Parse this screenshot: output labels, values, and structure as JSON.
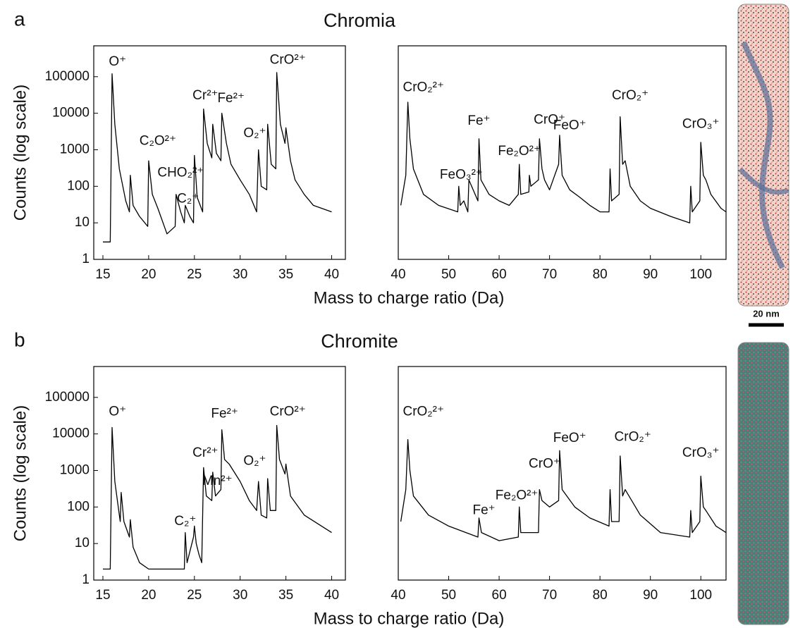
{
  "figure": {
    "panels": [
      {
        "label": "a",
        "title": "Chromia",
        "xlabel": "Mass to charge ratio (Da)",
        "ylabel": "Counts (log scale)"
      },
      {
        "label": "b",
        "title": "Chromite",
        "xlabel": "Mass to charge ratio (Da)",
        "ylabel": "Counts (log scale)"
      }
    ],
    "scale_bar": "20 nm"
  },
  "chart_data": [
    {
      "type": "line",
      "log_y": true,
      "color": "#000000",
      "xlim": [
        14,
        41.5
      ],
      "ylim": [
        1,
        700000
      ],
      "xticks": [
        15,
        20,
        25,
        30,
        35,
        40
      ],
      "yticks": [
        1,
        10,
        100,
        1000,
        10000,
        100000
      ],
      "x": [
        15,
        15.8,
        16,
        16.3,
        16.8,
        17.5,
        17.9,
        18,
        18.3,
        19,
        19.9,
        20,
        20.4,
        21,
        22,
        22.9,
        23,
        23.5,
        23.9,
        24,
        24.5,
        24.9,
        25,
        25.3,
        25.9,
        26,
        26.4,
        26.9,
        27,
        27.4,
        27.9,
        28,
        28.5,
        29,
        30,
        31,
        31.8,
        32,
        32.3,
        32.9,
        33,
        33.4,
        33.9,
        34,
        34.4,
        34.9,
        35,
        35.5,
        36,
        37,
        38,
        40
      ],
      "values": [
        3,
        3,
        120000,
        5000,
        300,
        40,
        20,
        200,
        30,
        15,
        8,
        500,
        60,
        25,
        5,
        8,
        60,
        20,
        10,
        30,
        15,
        10,
        700,
        50,
        20,
        13000,
        1500,
        600,
        5000,
        800,
        500,
        10000,
        1500,
        400,
        150,
        60,
        20,
        1000,
        100,
        80,
        5000,
        400,
        300,
        130000,
        5000,
        1500,
        4000,
        500,
        150,
        60,
        30,
        20
      ],
      "annotations": [
        {
          "text": "O⁺",
          "x": 16.6,
          "y": 250000
        },
        {
          "text": "C₂O²⁺",
          "x": 21,
          "y": 1700
        },
        {
          "text": "CHO₂²⁺",
          "x": 23.5,
          "y": 230
        },
        {
          "text": "C₂⁺",
          "x": 24.3,
          "y": 45
        },
        {
          "text": "Cr²⁺",
          "x": 26.2,
          "y": 30000
        },
        {
          "text": "Fe²⁺",
          "x": 29,
          "y": 25000
        },
        {
          "text": "O₂⁺",
          "x": 31.6,
          "y": 2800
        },
        {
          "text": "CrO²⁺",
          "x": 35.2,
          "y": 280000
        }
      ]
    },
    {
      "type": "line",
      "log_y": true,
      "color": "#000000",
      "xlim": [
        40,
        105
      ],
      "ylim": [
        1,
        700000
      ],
      "xticks": [
        40,
        50,
        60,
        70,
        80,
        90,
        100
      ],
      "x": [
        40.5,
        41.5,
        41.9,
        42.3,
        43,
        45,
        48,
        51.8,
        52,
        52.3,
        53,
        53.8,
        54,
        55.8,
        56,
        56.4,
        58,
        60,
        62,
        63.8,
        64,
        64.3,
        65.9,
        66,
        66.3,
        67.8,
        68,
        68.5,
        69,
        70,
        71.8,
        72,
        72.5,
        74,
        76,
        78,
        80,
        81.8,
        82,
        82.3,
        83.8,
        84,
        84.5,
        85,
        86,
        88,
        90,
        94,
        97.8,
        98,
        98.3,
        99.8,
        100,
        100.5,
        101,
        102,
        104,
        105
      ],
      "values": [
        30,
        200,
        20000,
        2000,
        300,
        60,
        30,
        20,
        100,
        30,
        40,
        20,
        150,
        40,
        2000,
        150,
        60,
        40,
        30,
        60,
        400,
        60,
        70,
        200,
        100,
        150,
        2000,
        300,
        150,
        80,
        400,
        2500,
        200,
        80,
        50,
        30,
        20,
        20,
        300,
        40,
        60,
        8000,
        400,
        500,
        100,
        40,
        25,
        15,
        10,
        100,
        20,
        40,
        1600,
        200,
        150,
        60,
        25,
        20
      ],
      "annotations": [
        {
          "text": "CrO₂²⁺",
          "x": 45,
          "y": 50000
        },
        {
          "text": "FeO₃²⁺",
          "x": 52.5,
          "y": 200
        },
        {
          "text": "Fe⁺",
          "x": 56,
          "y": 6000
        },
        {
          "text": "Fe₂O²⁺",
          "x": 64,
          "y": 900
        },
        {
          "text": "CrO⁺",
          "x": 70,
          "y": 6500
        },
        {
          "text": "FeO⁺",
          "x": 74,
          "y": 4500
        },
        {
          "text": "CrO₂⁺",
          "x": 86,
          "y": 30000
        },
        {
          "text": "CrO₃⁺",
          "x": 100,
          "y": 5000
        }
      ]
    },
    {
      "type": "line",
      "log_y": true,
      "color": "#000000",
      "xlim": [
        14,
        41.5
      ],
      "ylim": [
        1,
        700000
      ],
      "xticks": [
        15,
        20,
        25,
        30,
        35,
        40
      ],
      "yticks": [
        1,
        10,
        100,
        1000,
        10000,
        100000
      ],
      "x": [
        15,
        15.8,
        16,
        16.3,
        16.8,
        16.9,
        17,
        17.3,
        17.9,
        18,
        18.3,
        19,
        20,
        22,
        23.9,
        24,
        24.2,
        24.9,
        25,
        25.2,
        25.5,
        25.8,
        26,
        26.3,
        26.9,
        27,
        27.3,
        27.9,
        28,
        28.3,
        28.8,
        30,
        31,
        31.8,
        32,
        32.3,
        32.9,
        33,
        33.3,
        33.9,
        34,
        34.3,
        34.9,
        35,
        35.5,
        37,
        40
      ],
      "values": [
        2,
        2,
        15000,
        500,
        60,
        40,
        250,
        40,
        15,
        45,
        8,
        3,
        2,
        2,
        2,
        20,
        3,
        15,
        30,
        10,
        5,
        3,
        1200,
        200,
        150,
        900,
        200,
        300,
        13000,
        2000,
        1500,
        500,
        150,
        80,
        500,
        60,
        50,
        600,
        80,
        80,
        17000,
        2000,
        800,
        1500,
        200,
        60,
        20
      ],
      "annotations": [
        {
          "text": "O⁺",
          "x": 16.6,
          "y": 40000
        },
        {
          "text": "C₂⁺",
          "x": 24,
          "y": 40
        },
        {
          "text": "Cr²⁺",
          "x": 26.2,
          "y": 3000
        },
        {
          "text": "Mn²⁺",
          "x": 27.5,
          "y": 500
        },
        {
          "text": "Fe²⁺",
          "x": 28.3,
          "y": 35000
        },
        {
          "text": "O₂⁺",
          "x": 31.6,
          "y": 1800
        },
        {
          "text": "CrO²⁺",
          "x": 35.2,
          "y": 40000
        }
      ]
    },
    {
      "type": "line",
      "log_y": true,
      "color": "#000000",
      "xlim": [
        40,
        105
      ],
      "ylim": [
        1,
        700000
      ],
      "xticks": [
        40,
        50,
        60,
        70,
        80,
        90,
        100
      ],
      "x": [
        40.5,
        41.5,
        41.9,
        42.3,
        43,
        46,
        50,
        55.8,
        56,
        56.5,
        60,
        63.8,
        64,
        64.3,
        66,
        67.8,
        68,
        68.5,
        70,
        71.8,
        72,
        72.5,
        75,
        78,
        81.8,
        82,
        82.3,
        83.8,
        84,
        84.5,
        85,
        88,
        92,
        97.8,
        98,
        98.3,
        99.8,
        100,
        100.5,
        101,
        103,
        105
      ],
      "values": [
        40,
        300,
        7000,
        1000,
        200,
        60,
        30,
        15,
        50,
        20,
        12,
        15,
        100,
        20,
        20,
        20,
        300,
        150,
        100,
        150,
        3500,
        300,
        100,
        50,
        30,
        300,
        40,
        40,
        2500,
        200,
        300,
        60,
        20,
        15,
        80,
        20,
        40,
        700,
        100,
        80,
        30,
        20
      ],
      "annotations": [
        {
          "text": "CrO₂²⁺",
          "x": 45,
          "y": 40000
        },
        {
          "text": "Fe⁺",
          "x": 57,
          "y": 80
        },
        {
          "text": "Fe₂O²⁺",
          "x": 63.5,
          "y": 200
        },
        {
          "text": "CrO⁺",
          "x": 69,
          "y": 1500
        },
        {
          "text": "FeO⁺",
          "x": 74,
          "y": 7500
        },
        {
          "text": "CrO₂⁺",
          "x": 86.5,
          "y": 8000
        },
        {
          "text": "CrO₃⁺",
          "x": 100,
          "y": 3000
        }
      ]
    }
  ]
}
